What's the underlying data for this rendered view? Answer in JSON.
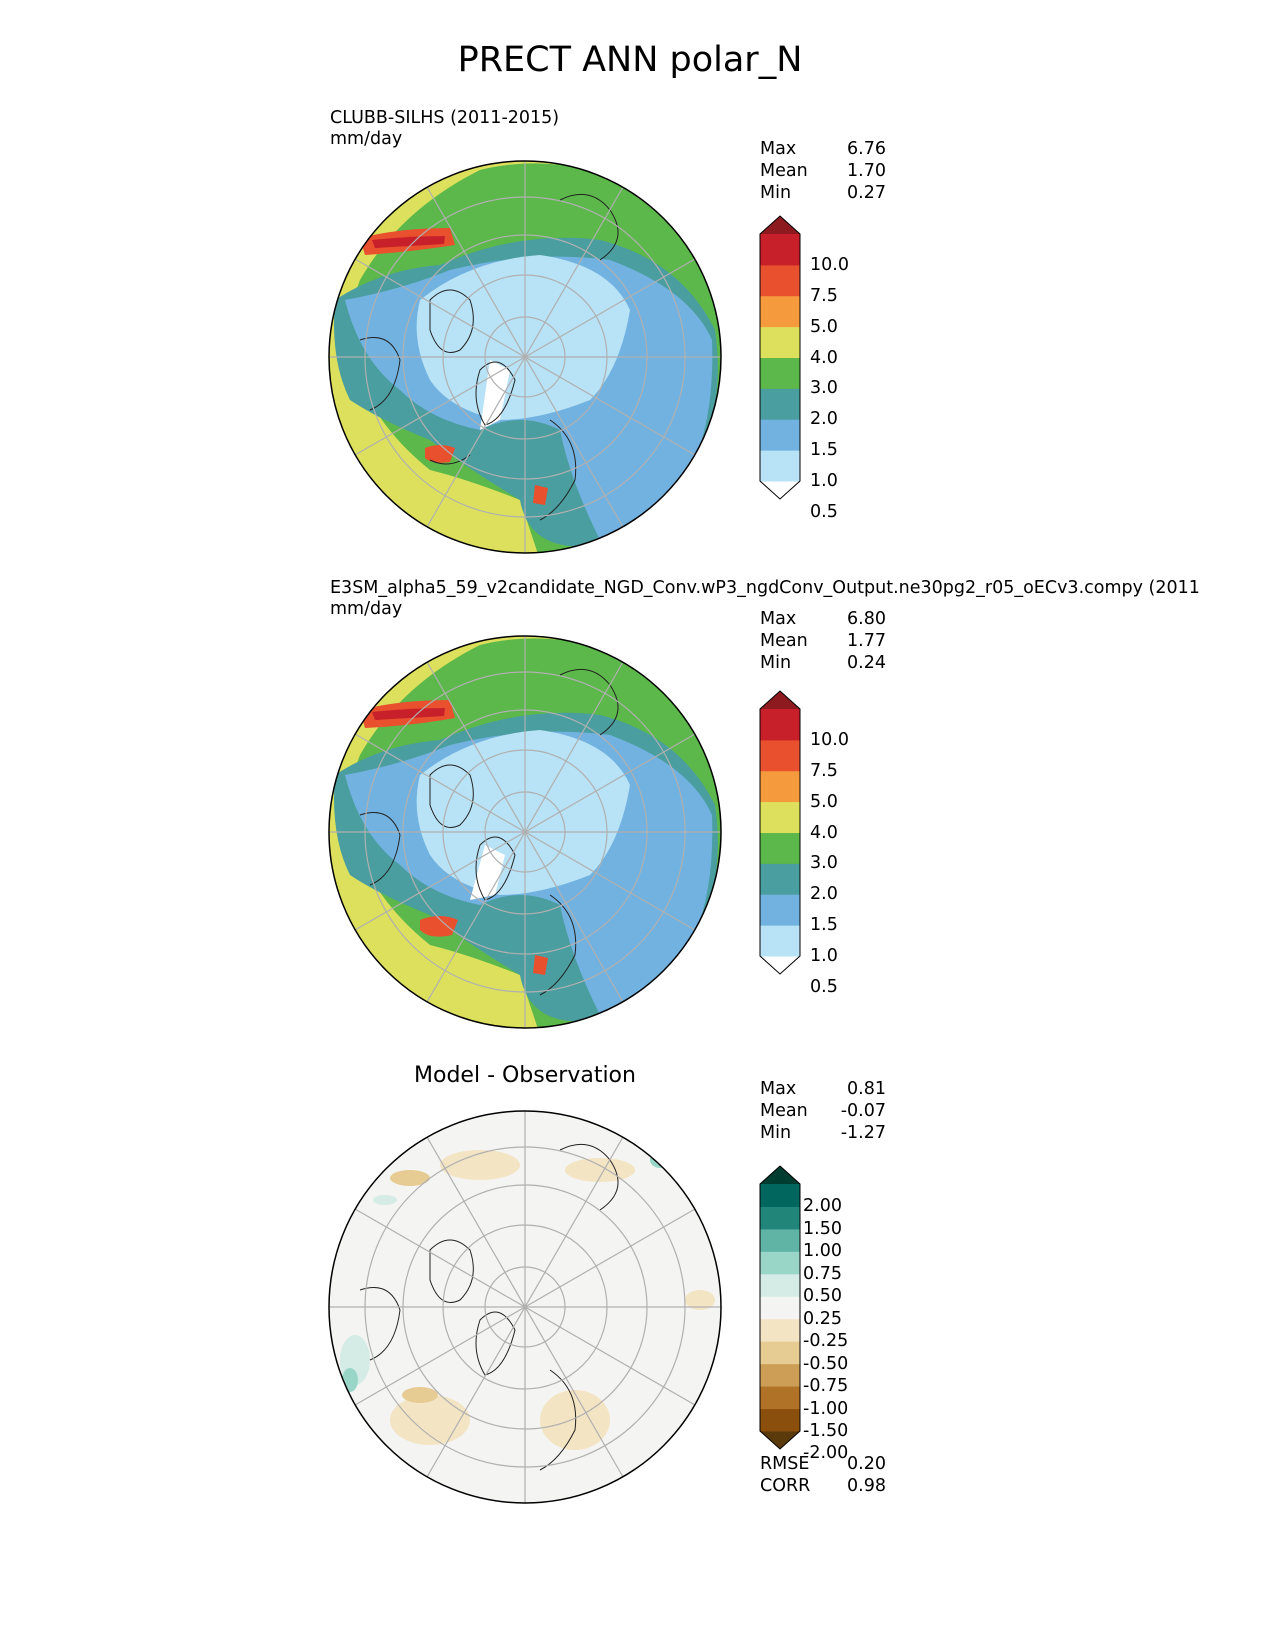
{
  "figure_title": "PRECT ANN polar_N",
  "panels": [
    {
      "id": "test",
      "title_line1": "CLUBB-SILHS (2011-2015)",
      "title_line2": "mm/day",
      "stats": [
        {
          "label": "Max",
          "value": "6.76"
        },
        {
          "label": "Mean",
          "value": "1.70"
        },
        {
          "label": "Min",
          "value": "0.27"
        }
      ]
    },
    {
      "id": "ref",
      "title_line1": "E3SM_alpha5_59_v2candidate_NGD_Conv.wP3_ngdConv_Output.ne30pg2_r05_oECv3.compy (2011",
      "title_line2": "mm/day",
      "stats": [
        {
          "label": "Max",
          "value": "6.80"
        },
        {
          "label": "Mean",
          "value": "1.77"
        },
        {
          "label": "Min",
          "value": "0.24"
        }
      ]
    },
    {
      "id": "diff",
      "title": "Model - Observation",
      "stats": [
        {
          "label": "Max",
          "value": "0.81"
        },
        {
          "label": "Mean",
          "value": "-0.07"
        },
        {
          "label": "Min",
          "value": "-1.27"
        }
      ],
      "metrics": [
        {
          "label": "RMSE",
          "value": "0.20"
        },
        {
          "label": "CORR",
          "value": "0.98"
        }
      ]
    }
  ],
  "colorbars": {
    "precip": {
      "labels": [
        "10.0",
        "7.5",
        "5.0",
        "4.0",
        "3.0",
        "2.0",
        "1.5",
        "1.0",
        "0.5"
      ],
      "colors": [
        "#ffffff",
        "#b8e2f6",
        "#72b2e0",
        "#4a9ea0",
        "#5cb84a",
        "#dce05c",
        "#f59b3e",
        "#e8502e",
        "#c8202a",
        "#8c1a1e"
      ]
    },
    "diff": {
      "labels": [
        "2.00",
        "1.50",
        "1.00",
        "0.75",
        "0.50",
        "0.25",
        "-0.25",
        "-0.50",
        "-0.75",
        "-1.00",
        "-1.50",
        "-2.00"
      ],
      "colors": [
        "#5a3a0a",
        "#8a4f0c",
        "#b07226",
        "#cd9e55",
        "#e6cc92",
        "#f3e4c3",
        "#f4f4f2",
        "#d4ebe6",
        "#9ad6c8",
        "#5fb4a6",
        "#21857a",
        "#01665e",
        "#003c30"
      ]
    }
  },
  "map_colors": {
    "gridline": "#b0b0b0",
    "coastline": "#222222",
    "diff_background": "#f4f4f2"
  }
}
